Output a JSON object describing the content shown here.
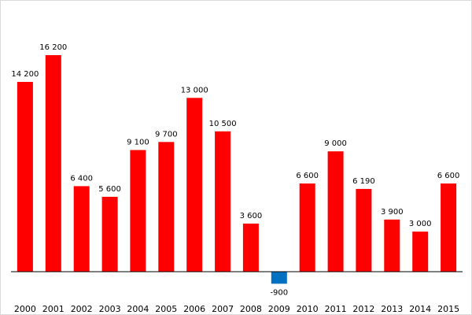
{
  "chart_data": {
    "type": "bar",
    "title": "",
    "xlabel": "",
    "ylabel": "",
    "categories": [
      "2000",
      "2001",
      "2002",
      "2003",
      "2004",
      "2005",
      "2006",
      "2007",
      "2008",
      "2009",
      "2010",
      "2011",
      "2012",
      "2013",
      "2014",
      "2015"
    ],
    "values": [
      14200,
      16200,
      6400,
      5600,
      9100,
      9700,
      13000,
      10500,
      3600,
      -900,
      6600,
      9000,
      6190,
      3900,
      3000,
      6600
    ],
    "data_labels": [
      "14 200",
      "16 200",
      "6 400",
      "5 600",
      "9 100",
      "9 700",
      "13 000",
      "10 500",
      "3 600",
      "-900",
      "6 600",
      "9 000",
      "6 190",
      "3 900",
      "3 000",
      "6 600"
    ],
    "ylim": [
      -1000,
      20000
    ],
    "grid": false,
    "legend": "none",
    "colors": {
      "positive": "#ff0000",
      "negative": "#0070c0",
      "axis": "#000000",
      "frame": "#d9d9d9"
    }
  }
}
